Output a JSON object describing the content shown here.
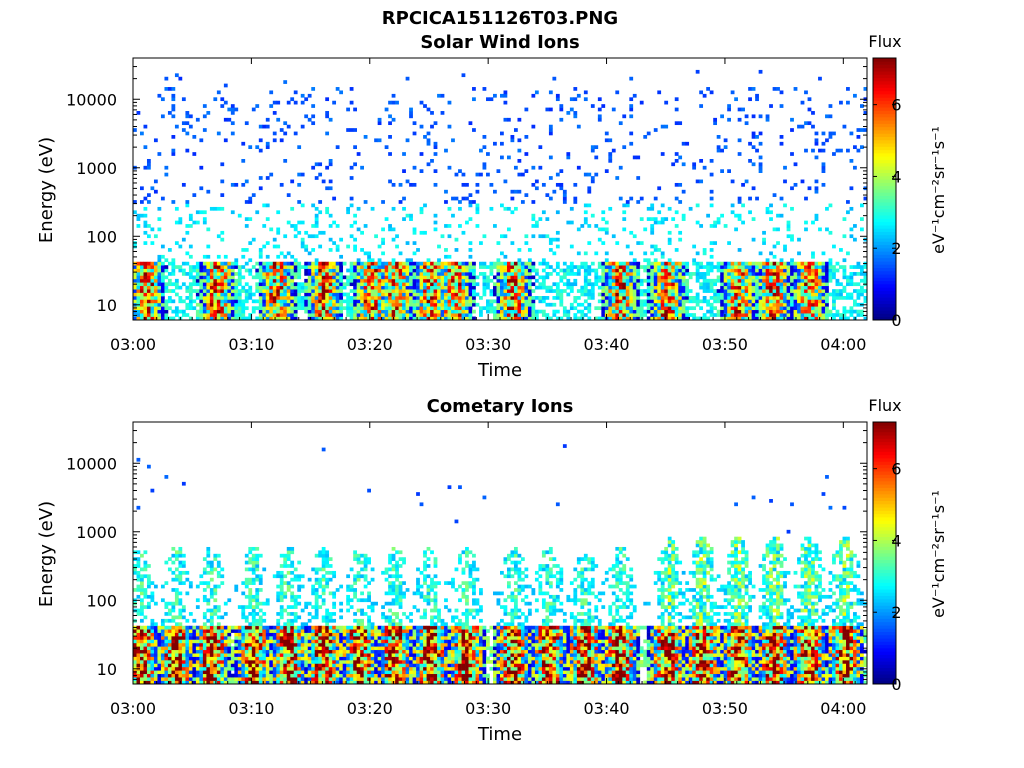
{
  "figure": {
    "title": "RPCICA151126T03.PNG"
  },
  "chart_data": [
    {
      "type": "heatmap",
      "title": "Solar Wind Ions",
      "xlabel": "Time",
      "ylabel": "Energy (eV)",
      "x_ticks": [
        "03:00",
        "03:10",
        "03:20",
        "03:30",
        "03:40",
        "03:50",
        "04:00"
      ],
      "y_ticks": [
        "10",
        "100",
        "1000",
        "10000"
      ],
      "y_scale": "log",
      "x_range": [
        "03:00",
        "04:02"
      ],
      "y_range": [
        6,
        40000
      ],
      "colorbar": {
        "title": "Flux",
        "label": "eV⁻¹cm⁻²sr⁻¹s⁻¹",
        "ticks": [
          "0",
          "2",
          "4",
          "6"
        ],
        "range": [
          0,
          7.3
        ]
      },
      "features": {
        "low_energy_band_eV": [
          10,
          40
        ],
        "low_energy_bursts_min": [
          1,
          7,
          12,
          16,
          20,
          22,
          25,
          27,
          32,
          41,
          45,
          51,
          54,
          57
        ],
        "scatter_energy_range_eV": [
          100,
          15000
        ],
        "peak_flux": 7
      }
    },
    {
      "type": "heatmap",
      "title": "Cometary Ions",
      "xlabel": "Time",
      "ylabel": "Energy (eV)",
      "x_ticks": [
        "03:00",
        "03:10",
        "03:20",
        "03:30",
        "03:40",
        "03:50",
        "04:00"
      ],
      "y_ticks": [
        "10",
        "100",
        "1000",
        "10000"
      ],
      "y_scale": "log",
      "x_range": [
        "03:00",
        "04:02"
      ],
      "y_range": [
        6,
        40000
      ],
      "colorbar": {
        "title": "Flux",
        "label": "eV⁻¹cm⁻²sr⁻¹s⁻¹",
        "ticks": [
          "0",
          "2",
          "4",
          "6"
        ],
        "range": [
          0,
          7.3
        ]
      },
      "features": {
        "low_energy_band_eV": [
          10,
          40
        ],
        "strong_bursts_min": [
          0.5,
          3.5,
          6.5,
          10,
          13,
          16,
          19,
          22,
          25,
          28,
          32,
          35,
          38,
          41,
          45,
          48,
          51,
          54,
          57,
          60
        ],
        "plume_energy_range_eV": [
          40,
          700
        ],
        "peak_flux": 7
      }
    }
  ]
}
